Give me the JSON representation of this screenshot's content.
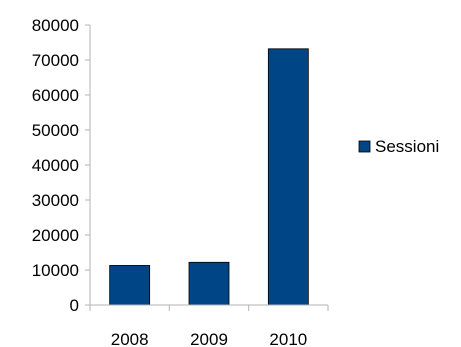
{
  "chart_data": {
    "type": "bar",
    "categories": [
      "2008",
      "2009",
      "2010"
    ],
    "series": [
      {
        "name": "Sessioni",
        "values": [
          11300,
          12200,
          73200
        ],
        "color": "#004586"
      }
    ],
    "ylim": [
      0,
      80000
    ],
    "yticks": [
      "0",
      "10000",
      "20000",
      "30000",
      "40000",
      "50000",
      "60000",
      "70000",
      "80000"
    ],
    "grid": false,
    "legend_position": "right"
  }
}
